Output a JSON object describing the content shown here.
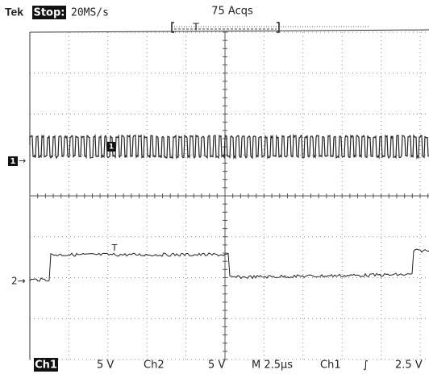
{
  "header": {
    "brand": "Tek",
    "state": "Stop:",
    "sample_rate": "20MS/s",
    "acquisitions": "75 Acqs",
    "trigger_position_marker": "T"
  },
  "markers": {
    "ch1_ground": "1",
    "ch1_arrow": "→",
    "ch1_trace_label": "1",
    "ch2_ground": "2→",
    "trigger_level_marker": "T"
  },
  "footer": {
    "ch1_label": "Ch1",
    "ch1_scale": "5 V",
    "ch2_label": "Ch2",
    "ch2_scale": "5 V",
    "timebase": "M 2.5µs",
    "trigger_source": "Ch1",
    "trigger_slope": "∫",
    "trigger_level": "2.5 V"
  }
}
